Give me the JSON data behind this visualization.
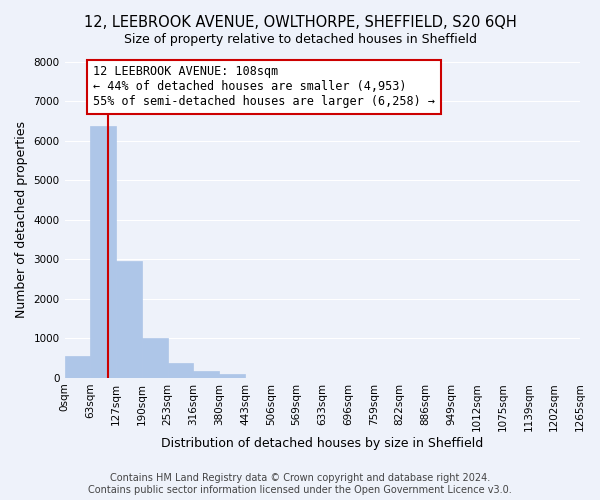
{
  "title": "12, LEEBROOK AVENUE, OWLTHORPE, SHEFFIELD, S20 6QH",
  "subtitle": "Size of property relative to detached houses in Sheffield",
  "xlabel": "Distribution of detached houses by size in Sheffield",
  "ylabel": "Number of detached properties",
  "bin_labels": [
    "0sqm",
    "63sqm",
    "127sqm",
    "190sqm",
    "253sqm",
    "316sqm",
    "380sqm",
    "443sqm",
    "506sqm",
    "569sqm",
    "633sqm",
    "696sqm",
    "759sqm",
    "822sqm",
    "886sqm",
    "949sqm",
    "1012sqm",
    "1075sqm",
    "1139sqm",
    "1202sqm",
    "1265sqm"
  ],
  "bar_values": [
    550,
    6370,
    2950,
    1000,
    380,
    170,
    90,
    0,
    0,
    0,
    0,
    0,
    0,
    0,
    0,
    0,
    0,
    0,
    0,
    0
  ],
  "bar_color": "#aec6e8",
  "bar_edge_color": "#aec6e8",
  "ylim": [
    0,
    8000
  ],
  "yticks": [
    0,
    1000,
    2000,
    3000,
    4000,
    5000,
    6000,
    7000,
    8000
  ],
  "property_line_x": 108,
  "property_line_color": "#cc0000",
  "annotation_line1": "12 LEEBROOK AVENUE: 108sqm",
  "annotation_line2": "← 44% of detached houses are smaller (4,953)",
  "annotation_line3": "55% of semi-detached houses are larger (6,258) →",
  "annotation_box_color": "#ffffff",
  "annotation_box_edge": "#cc0000",
  "footer_line1": "Contains HM Land Registry data © Crown copyright and database right 2024.",
  "footer_line2": "Contains public sector information licensed under the Open Government Licence v3.0.",
  "background_color": "#eef2fa",
  "grid_color": "#ffffff",
  "title_fontsize": 10.5,
  "subtitle_fontsize": 9,
  "axis_label_fontsize": 9,
  "tick_fontsize": 7.5,
  "annotation_fontsize": 8.5,
  "footer_fontsize": 7,
  "bin_start_vals": [
    0,
    63,
    127,
    190,
    253,
    316,
    380,
    443,
    506,
    569,
    633,
    696,
    759,
    822,
    886,
    949,
    1012,
    1075,
    1139,
    1202,
    1265
  ]
}
